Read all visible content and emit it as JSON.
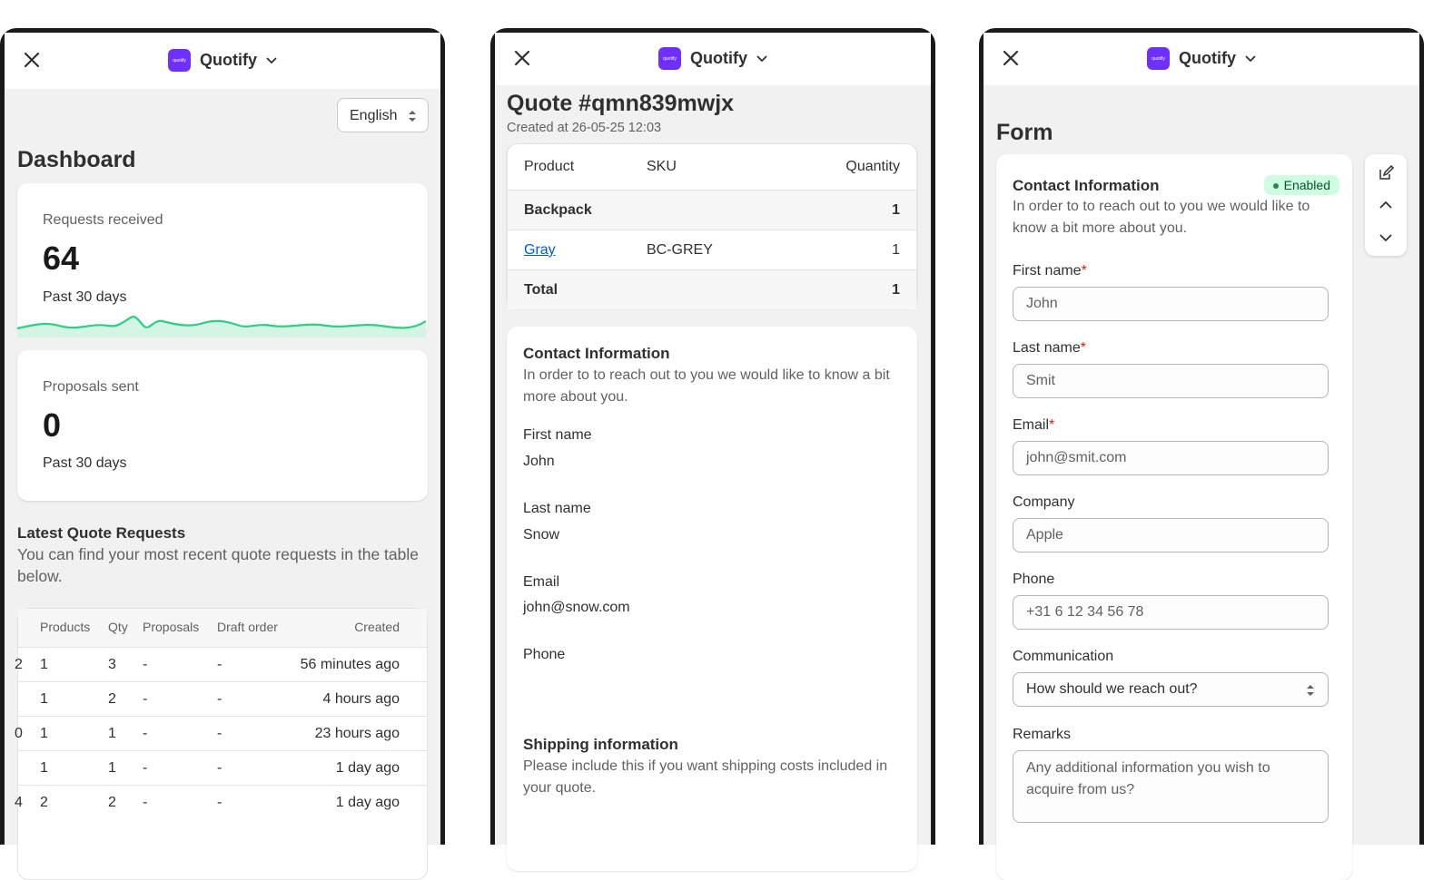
{
  "app": {
    "brand": "Quotify",
    "logo_text": "quotify"
  },
  "dashboard": {
    "language": "English",
    "title": "Dashboard",
    "requests": {
      "label": "Requests received",
      "value": "64",
      "period": "Past 30 days"
    },
    "proposals": {
      "label": "Proposals sent",
      "value": "0",
      "period": "Past 30 days"
    },
    "latest": {
      "title": "Latest Quote Requests",
      "subtitle": "You can find your most recent quote requests in the table below.",
      "columns": [
        "Products",
        "Qty",
        "Proposals",
        "Draft order",
        "Created"
      ],
      "rows": [
        {
          "lead": "2",
          "products": "1",
          "qty": "3",
          "proposals": "-",
          "draft": "-",
          "created": "56 minutes ago"
        },
        {
          "lead": "",
          "products": "1",
          "qty": "2",
          "proposals": "-",
          "draft": "-",
          "created": "4 hours ago"
        },
        {
          "lead": "0",
          "products": "1",
          "qty": "1",
          "proposals": "-",
          "draft": "-",
          "created": "23 hours ago"
        },
        {
          "lead": "",
          "products": "1",
          "qty": "1",
          "proposals": "-",
          "draft": "-",
          "created": "1 day ago"
        },
        {
          "lead": "4",
          "products": "2",
          "qty": "2",
          "proposals": "-",
          "draft": "-",
          "created": "1 day ago"
        }
      ]
    }
  },
  "quote": {
    "title": "Quote #qmn839mwjx",
    "created": "Created at 26-05-25 12:03",
    "columns": [
      "Product",
      "SKU",
      "Quantity"
    ],
    "rows": [
      {
        "product": "Backpack",
        "sku": "",
        "qty": "1"
      },
      {
        "product": "Gray",
        "sku": "BC-GREY",
        "qty": "1"
      },
      {
        "product": "Total",
        "sku": "",
        "qty": "1"
      }
    ],
    "contact": {
      "title": "Contact Information",
      "subtitle": "In order to to reach out to you we would like to know a bit more about you.",
      "first_name_label": "First name",
      "first_name": "John",
      "last_name_label": "Last name",
      "last_name": "Snow",
      "email_label": "Email",
      "email": "john@snow.com",
      "phone_label": "Phone",
      "phone": ""
    },
    "shipping": {
      "title": "Shipping information",
      "subtitle": "Please include this if you want shipping costs included in your quote."
    }
  },
  "form": {
    "title": "Form",
    "section_title": "Contact Information",
    "status": "Enabled",
    "subtitle": "In order to to reach out to you we would like to know a bit more about you.",
    "fields": {
      "first_name": {
        "label": "First name",
        "required": "*",
        "placeholder": "John"
      },
      "last_name": {
        "label": "Last name",
        "required": "*",
        "placeholder": "Smit"
      },
      "email": {
        "label": "Email",
        "required": "*",
        "placeholder": "john@smit.com"
      },
      "company": {
        "label": "Company",
        "placeholder": "Apple"
      },
      "phone": {
        "label": "Phone",
        "placeholder": "+31 6 12 34 56 78"
      },
      "communication": {
        "label": "Communication",
        "value": "How should we reach out?"
      },
      "remarks": {
        "label": "Remarks",
        "placeholder": "Any additional information you wish to acquire from us?"
      }
    }
  },
  "colors": {
    "brand": "#6e2fff",
    "sparkline": "#2ecf83",
    "enabled_bg": "#cdfee1",
    "link": "#005bd3"
  }
}
